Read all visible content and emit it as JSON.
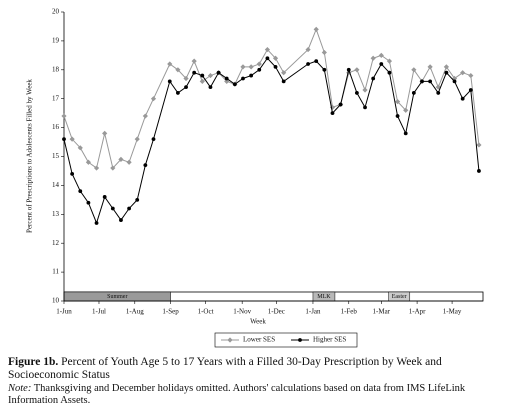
{
  "chart_data": {
    "type": "line",
    "x_label": "Week",
    "y_label": "Percent of Prescriptions to Adolescents Filled by Week",
    "x": [
      0,
      1,
      2,
      3,
      4,
      5,
      6,
      7,
      8,
      9,
      10,
      11,
      13,
      14,
      15,
      16,
      17,
      18,
      19,
      20,
      21,
      22,
      23,
      24,
      25,
      26,
      27,
      30,
      31,
      32,
      33,
      34,
      35,
      36,
      37,
      38,
      39,
      40,
      41,
      42,
      43,
      44,
      45,
      46,
      47,
      48,
      49,
      50,
      51
    ],
    "series": [
      {
        "name": "Lower SES",
        "color": "#999999",
        "marker": "diamond",
        "values": [
          16.4,
          15.6,
          15.3,
          14.8,
          14.6,
          15.8,
          14.6,
          14.9,
          14.8,
          15.6,
          16.4,
          17.0,
          18.2,
          18.0,
          17.7,
          18.3,
          17.6,
          17.8,
          17.9,
          17.6,
          17.5,
          18.1,
          18.1,
          18.2,
          18.7,
          18.4,
          17.9,
          18.7,
          19.4,
          18.6,
          16.7,
          16.8,
          17.9,
          18.0,
          17.3,
          18.4,
          18.5,
          18.3,
          16.9,
          16.6,
          18.0,
          17.6,
          18.1,
          17.4,
          18.1,
          17.7,
          17.9,
          17.8,
          15.4
        ]
      },
      {
        "name": "Higher SES",
        "color": "#000000",
        "marker": "circle",
        "values": [
          15.6,
          14.4,
          13.8,
          13.4,
          12.7,
          13.6,
          13.2,
          12.8,
          13.2,
          13.5,
          14.7,
          15.6,
          17.6,
          17.2,
          17.4,
          17.9,
          17.8,
          17.4,
          17.9,
          17.7,
          17.5,
          17.7,
          17.8,
          18.0,
          18.4,
          18.1,
          17.6,
          18.2,
          18.3,
          18.0,
          16.5,
          16.8,
          18.0,
          17.2,
          16.7,
          17.7,
          18.2,
          17.9,
          16.4,
          15.8,
          17.2,
          17.6,
          17.6,
          17.2,
          17.9,
          17.6,
          17.0,
          17.3,
          14.5
        ]
      }
    ],
    "xlim": [
      0,
      51.5
    ],
    "ylim": [
      10,
      20
    ],
    "yticks": [
      10,
      11,
      12,
      13,
      14,
      15,
      16,
      17,
      18,
      19,
      20
    ],
    "xticks": [
      {
        "value": 0,
        "label": "1-Jun"
      },
      {
        "value": 4.3,
        "label": "1-Jul"
      },
      {
        "value": 8.7,
        "label": "1-Aug"
      },
      {
        "value": 13.1,
        "label": "1-Sep"
      },
      {
        "value": 17.4,
        "label": "1-Oct"
      },
      {
        "value": 21.9,
        "label": "1-Nov"
      },
      {
        "value": 26.1,
        "label": "1-Dec"
      },
      {
        "value": 30.6,
        "label": "1-Jan"
      },
      {
        "value": 35,
        "label": "1-Feb"
      },
      {
        "value": 39,
        "label": "1-Mar"
      },
      {
        "value": 43.4,
        "label": "1-Apr"
      },
      {
        "value": 47.7,
        "label": "1-May"
      }
    ],
    "periods": [
      {
        "label": "Summer",
        "x": [
          0,
          13.1
        ],
        "color": "#9a9a9a"
      },
      {
        "label": "MLK",
        "x": [
          30.6,
          33.3
        ],
        "color": "#b8b8b8"
      },
      {
        "label": "Easter",
        "x": [
          39.9,
          42.5
        ],
        "color": "#cccccc"
      }
    ],
    "legend": "bottom"
  },
  "caption": {
    "label": "Figure 1b.",
    "text": "Percent of Youth Age 5 to 17 Years with a Filled 30-Day Prescription by Week and Socioeconomic Status",
    "note_label": "Note:",
    "note": "Thanksgiving and December holidays omitted. Authors' calculations based on data from IMS LifeLink Information Assets."
  }
}
